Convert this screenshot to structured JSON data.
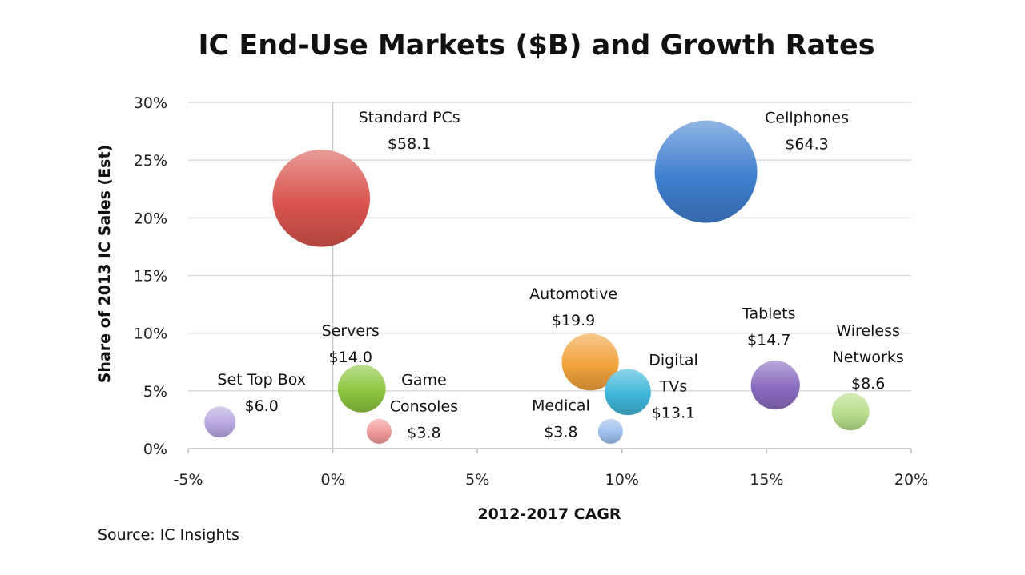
{
  "chart_data": {
    "type": "bubble",
    "title": "IC End-Use Markets ($B) and Growth Rates",
    "xlabel": "2012-2017 CAGR",
    "ylabel": "Share of 2013 IC Sales (Est)",
    "xlim": [
      -0.05,
      0.2
    ],
    "ylim": [
      0,
      0.3
    ],
    "x_ticks": [
      {
        "value": -0.05,
        "label": "-5%"
      },
      {
        "value": 0.0,
        "label": "0%"
      },
      {
        "value": 0.05,
        "label": "5%"
      },
      {
        "value": 0.1,
        "label": "10%"
      },
      {
        "value": 0.15,
        "label": "15%"
      },
      {
        "value": 0.2,
        "label": "20%"
      }
    ],
    "y_ticks": [
      {
        "value": 0.0,
        "label": "0%"
      },
      {
        "value": 0.05,
        "label": "5%"
      },
      {
        "value": 0.1,
        "label": "10%"
      },
      {
        "value": 0.15,
        "label": "15%"
      },
      {
        "value": 0.2,
        "label": "20%"
      },
      {
        "value": 0.25,
        "label": "25%"
      },
      {
        "value": 0.3,
        "label": "30%"
      }
    ],
    "grid": "horizontal",
    "points": [
      {
        "name": "Standard PCs",
        "label_lines": [
          "Standard PCs",
          "$58.1"
        ],
        "x": -0.004,
        "y": 0.217,
        "size": 58.1,
        "color": "#d9544e"
      },
      {
        "name": "Cellphones",
        "label_lines": [
          "Cellphones",
          "$64.3"
        ],
        "x": 0.129,
        "y": 0.24,
        "size": 64.3,
        "color": "#3f7fcf"
      },
      {
        "name": "Automotive",
        "label_lines": [
          "Automotive",
          "$19.9"
        ],
        "x": 0.089,
        "y": 0.075,
        "size": 19.9,
        "color": "#f2a23c"
      },
      {
        "name": "Digital TVs",
        "label_lines": [
          "Digital",
          "TVs",
          "$13.1"
        ],
        "x": 0.102,
        "y": 0.049,
        "size": 13.1,
        "color": "#3eb7d9"
      },
      {
        "name": "Tablets",
        "label_lines": [
          "Tablets",
          "$14.7"
        ],
        "x": 0.153,
        "y": 0.055,
        "size": 14.7,
        "color": "#8a6bbf"
      },
      {
        "name": "Wireless Networks",
        "label_lines": [
          "Wireless",
          "Networks",
          "$8.6"
        ],
        "x": 0.179,
        "y": 0.032,
        "size": 8.6,
        "color": "#b8df8a"
      },
      {
        "name": "Servers",
        "label_lines": [
          "Servers",
          "$14.0"
        ],
        "x": 0.01,
        "y": 0.052,
        "size": 14.0,
        "color": "#8cc63f"
      },
      {
        "name": "Game Consoles",
        "label_lines": [
          "Game",
          "Consoles",
          "$3.8"
        ],
        "x": 0.016,
        "y": 0.015,
        "size": 3.8,
        "color": "#ef9a98"
      },
      {
        "name": "Set Top Box",
        "label_lines": [
          "Set Top Box",
          "$6.0"
        ],
        "x": -0.039,
        "y": 0.023,
        "size": 6.0,
        "color": "#b9a8e0"
      },
      {
        "name": "Medical",
        "label_lines": [
          "Medical",
          "$3.8"
        ],
        "x": 0.096,
        "y": 0.015,
        "size": 3.8,
        "color": "#9cc0ee"
      }
    ]
  },
  "footer": {
    "source": "Source: IC Insights"
  }
}
